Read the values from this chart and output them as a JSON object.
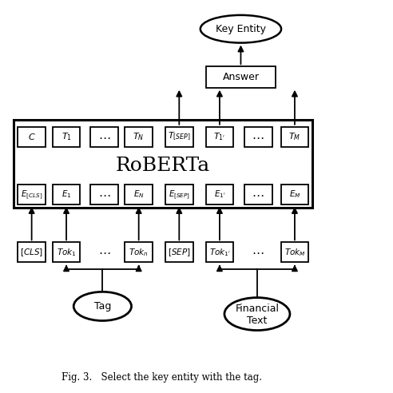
{
  "title": "Fig. 3.   Select the key entity with the tag.",
  "roberta_label": "RoBERTa",
  "answer_label": "Answer",
  "key_entity_label": "Key Entity",
  "top_boxes": [
    "C",
    "T_{1}",
    "\\cdots",
    "T_{N}",
    "T_{[SEP]}",
    "T_{1'}",
    "\\cdots",
    "T_{M}"
  ],
  "embed_boxes": [
    "E_{[CLS]}",
    "E_{1}",
    "\\cdots",
    "E_{N}",
    "E_{[SEP]}",
    "E_{1'}",
    "\\cdots",
    "E_{M}"
  ],
  "token_boxes": [
    "[CLS]",
    "Tok_{1}",
    "\\cdots",
    "Tok_{n}",
    "[SEP]",
    "Tok_{1'}",
    "\\cdots",
    "Tok_{M}"
  ],
  "bg_color": "#ffffff",
  "box_color": "#000000",
  "arrow_color": "#000000",
  "font_size": 9,
  "roberta_font_size": 18
}
